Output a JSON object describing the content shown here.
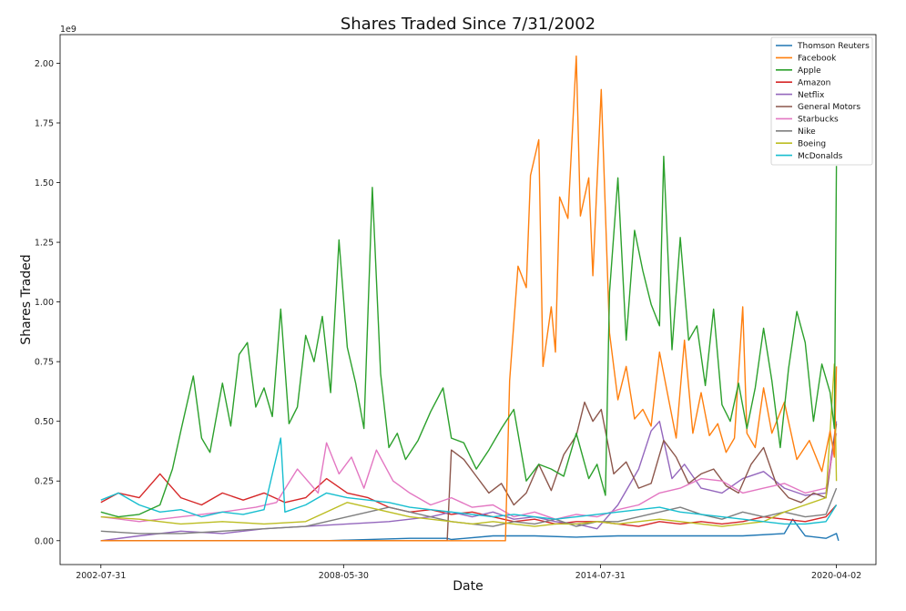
{
  "chart_data": {
    "type": "line",
    "title": "Shares Traded Since 7/31/2002",
    "xlabel": "Date",
    "ylabel": "Shares Traded",
    "y_multiplier_label": "1e9",
    "ylim": [
      -0.1,
      2.12
    ],
    "x_tick_labels": [
      "2002-07-31",
      "2008-05-30",
      "2014-07-31",
      "2020-04-02"
    ],
    "x_tick_years": [
      2002.58,
      2008.41,
      2014.58,
      2020.25
    ],
    "xlim": [
      2001.6,
      2021.2
    ],
    "y_ticks": [
      0.0,
      0.25,
      0.5,
      0.75,
      1.0,
      1.25,
      1.5,
      1.75,
      2.0
    ],
    "y_tick_labels": [
      "0.00",
      "0.25",
      "0.50",
      "0.75",
      "1.00",
      "1.25",
      "1.50",
      "1.75",
      "2.00"
    ],
    "grid": false,
    "legend_position": "top-right",
    "series": [
      {
        "name": "Thomson Reuters",
        "color": "#1f77b4",
        "x": [
          2002.58,
          2004,
          2006,
          2008,
          2010,
          2010.9,
          2011,
          2012,
          2013,
          2014,
          2015,
          2016,
          2017,
          2018,
          2019.0,
          2019.2,
          2019.5,
          2020,
          2020.25,
          2020.3
        ],
        "y": [
          0.0,
          0.0,
          0.0,
          0.0,
          0.01,
          0.01,
          0.005,
          0.02,
          0.02,
          0.015,
          0.02,
          0.02,
          0.02,
          0.02,
          0.03,
          0.09,
          0.02,
          0.01,
          0.03,
          0.0
        ]
      },
      {
        "name": "Facebook",
        "color": "#ff7f0e",
        "x": [
          2002.58,
          2012.3,
          2012.4,
          2012.6,
          2012.8,
          2012.9,
          2013.1,
          2013.2,
          2013.4,
          2013.5,
          2013.6,
          2013.8,
          2014.0,
          2014.1,
          2014.3,
          2014.4,
          2014.6,
          2014.8,
          2015.0,
          2015.2,
          2015.4,
          2015.6,
          2015.8,
          2016.0,
          2016.2,
          2016.4,
          2016.6,
          2016.8,
          2017.0,
          2017.2,
          2017.4,
          2017.6,
          2017.8,
          2018.0,
          2018.1,
          2018.3,
          2018.5,
          2018.7,
          2019.0,
          2019.3,
          2019.6,
          2019.9,
          2020.1,
          2020.2,
          2020.25
        ],
        "y": [
          0.0,
          0.0,
          0.67,
          1.15,
          1.06,
          1.53,
          1.68,
          0.73,
          0.98,
          0.79,
          1.44,
          1.35,
          2.03,
          1.36,
          1.52,
          1.11,
          1.89,
          0.87,
          0.59,
          0.73,
          0.51,
          0.55,
          0.48,
          0.79,
          0.61,
          0.43,
          0.84,
          0.45,
          0.62,
          0.44,
          0.49,
          0.37,
          0.43,
          0.98,
          0.45,
          0.39,
          0.64,
          0.45,
          0.58,
          0.34,
          0.42,
          0.29,
          0.46,
          0.35,
          0.73
        ]
      },
      {
        "name": "Apple",
        "color": "#2ca02c",
        "x": [
          2002.58,
          2003.0,
          2003.5,
          2004.0,
          2004.3,
          2004.5,
          2004.8,
          2005.0,
          2005.2,
          2005.5,
          2005.7,
          2005.9,
          2006.1,
          2006.3,
          2006.5,
          2006.7,
          2006.9,
          2007.1,
          2007.3,
          2007.5,
          2007.7,
          2007.9,
          2008.1,
          2008.3,
          2008.5,
          2008.7,
          2008.9,
          2009.1,
          2009.3,
          2009.5,
          2009.7,
          2009.9,
          2010.2,
          2010.5,
          2010.8,
          2011.0,
          2011.3,
          2011.6,
          2011.9,
          2012.2,
          2012.5,
          2012.8,
          2013.1,
          2013.4,
          2013.7,
          2014.0,
          2014.3,
          2014.5,
          2014.7,
          2014.8,
          2015.0,
          2015.2,
          2015.4,
          2015.6,
          2015.8,
          2016.0,
          2016.1,
          2016.3,
          2016.5,
          2016.7,
          2016.9,
          2017.1,
          2017.3,
          2017.5,
          2017.7,
          2017.9,
          2018.1,
          2018.3,
          2018.5,
          2018.7,
          2018.9,
          2019.1,
          2019.3,
          2019.5,
          2019.7,
          2019.9,
          2020.1,
          2020.2,
          2020.25
        ],
        "y": [
          0.12,
          0.1,
          0.11,
          0.15,
          0.3,
          0.46,
          0.69,
          0.43,
          0.37,
          0.66,
          0.48,
          0.78,
          0.83,
          0.56,
          0.64,
          0.52,
          0.97,
          0.49,
          0.56,
          0.86,
          0.75,
          0.94,
          0.62,
          1.26,
          0.81,
          0.66,
          0.47,
          1.48,
          0.7,
          0.39,
          0.45,
          0.34,
          0.42,
          0.54,
          0.64,
          0.43,
          0.41,
          0.3,
          0.38,
          0.47,
          0.55,
          0.25,
          0.32,
          0.3,
          0.27,
          0.45,
          0.26,
          0.32,
          0.19,
          1.04,
          1.52,
          0.84,
          1.3,
          1.13,
          0.99,
          0.9,
          1.61,
          0.8,
          1.27,
          0.84,
          0.9,
          0.65,
          0.97,
          0.57,
          0.5,
          0.66,
          0.47,
          0.64,
          0.89,
          0.67,
          0.39,
          0.72,
          0.96,
          0.83,
          0.5,
          0.74,
          0.62,
          0.47,
          1.57
        ]
      },
      {
        "name": "Amazon",
        "color": "#d62728",
        "x": [
          2002.58,
          2003.0,
          2003.5,
          2004.0,
          2004.5,
          2005.0,
          2005.5,
          2006.0,
          2006.5,
          2007.0,
          2007.5,
          2008.0,
          2008.5,
          2009.0,
          2009.5,
          2010.0,
          2010.5,
          2011.0,
          2011.5,
          2012.0,
          2012.5,
          2013.0,
          2013.5,
          2014.0,
          2014.5,
          2015.0,
          2015.5,
          2016.0,
          2016.5,
          2017.0,
          2017.5,
          2018.0,
          2018.5,
          2019.0,
          2019.5,
          2020.0,
          2020.25
        ],
        "y": [
          0.16,
          0.2,
          0.18,
          0.28,
          0.18,
          0.15,
          0.2,
          0.17,
          0.2,
          0.16,
          0.18,
          0.26,
          0.2,
          0.18,
          0.14,
          0.12,
          0.13,
          0.11,
          0.12,
          0.1,
          0.08,
          0.09,
          0.07,
          0.08,
          0.08,
          0.07,
          0.06,
          0.08,
          0.07,
          0.08,
          0.07,
          0.08,
          0.1,
          0.09,
          0.08,
          0.1,
          0.15
        ]
      },
      {
        "name": "Netflix",
        "color": "#9467bd",
        "x": [
          2002.58,
          2003.5,
          2004.5,
          2005.5,
          2006.5,
          2007.5,
          2008.5,
          2009.5,
          2010.5,
          2011.0,
          2011.5,
          2012.0,
          2012.5,
          2013.0,
          2013.5,
          2014.0,
          2014.5,
          2015.0,
          2015.5,
          2015.8,
          2016.0,
          2016.3,
          2016.6,
          2017.0,
          2017.5,
          2018.0,
          2018.5,
          2019.0,
          2019.5,
          2020.0,
          2020.25
        ],
        "y": [
          0.0,
          0.02,
          0.04,
          0.03,
          0.05,
          0.06,
          0.07,
          0.08,
          0.1,
          0.12,
          0.1,
          0.12,
          0.09,
          0.1,
          0.08,
          0.07,
          0.05,
          0.15,
          0.3,
          0.46,
          0.5,
          0.26,
          0.32,
          0.22,
          0.2,
          0.26,
          0.29,
          0.22,
          0.19,
          0.2,
          0.5
        ]
      },
      {
        "name": "General Motors",
        "color": "#8c564b",
        "x": [
          2002.58,
          2010.9,
          2011.0,
          2011.3,
          2011.6,
          2011.9,
          2012.2,
          2012.5,
          2012.8,
          2013.1,
          2013.4,
          2013.7,
          2014.0,
          2014.2,
          2014.4,
          2014.6,
          2014.9,
          2015.2,
          2015.5,
          2015.8,
          2016.1,
          2016.4,
          2016.7,
          2017.0,
          2017.3,
          2017.6,
          2017.9,
          2018.2,
          2018.5,
          2018.8,
          2019.1,
          2019.4,
          2019.7,
          2020.0,
          2020.25
        ],
        "y": [
          0.0,
          0.0,
          0.38,
          0.34,
          0.27,
          0.2,
          0.24,
          0.15,
          0.2,
          0.32,
          0.21,
          0.36,
          0.44,
          0.58,
          0.5,
          0.55,
          0.28,
          0.33,
          0.22,
          0.24,
          0.42,
          0.35,
          0.24,
          0.28,
          0.3,
          0.23,
          0.2,
          0.32,
          0.39,
          0.24,
          0.18,
          0.16,
          0.2,
          0.18,
          0.49
        ]
      },
      {
        "name": "Starbucks",
        "color": "#e377c2",
        "x": [
          2002.58,
          2003.5,
          2004.5,
          2005.5,
          2006.3,
          2006.8,
          2007.3,
          2007.8,
          2008.0,
          2008.3,
          2008.6,
          2008.9,
          2009.2,
          2009.6,
          2010.0,
          2010.5,
          2011.0,
          2011.5,
          2012.0,
          2012.5,
          2013.0,
          2013.5,
          2014.0,
          2014.5,
          2015.0,
          2015.5,
          2016.0,
          2016.5,
          2017.0,
          2017.5,
          2018.0,
          2018.5,
          2019.0,
          2019.5,
          2020.0,
          2020.25
        ],
        "y": [
          0.1,
          0.08,
          0.1,
          0.12,
          0.14,
          0.16,
          0.3,
          0.2,
          0.41,
          0.28,
          0.35,
          0.22,
          0.38,
          0.25,
          0.2,
          0.15,
          0.18,
          0.14,
          0.15,
          0.1,
          0.12,
          0.09,
          0.11,
          0.1,
          0.13,
          0.15,
          0.2,
          0.22,
          0.26,
          0.25,
          0.2,
          0.22,
          0.24,
          0.2,
          0.22,
          0.45
        ]
      },
      {
        "name": "Nike",
        "color": "#7f7f7f",
        "x": [
          2002.58,
          2003.5,
          2004.5,
          2005.5,
          2006.5,
          2007.5,
          2008.0,
          2008.5,
          2009.0,
          2009.5,
          2010.0,
          2010.5,
          2011.0,
          2011.5,
          2012.0,
          2012.5,
          2013.0,
          2013.5,
          2014.0,
          2014.5,
          2015.0,
          2015.5,
          2016.0,
          2016.5,
          2017.0,
          2017.5,
          2018.0,
          2018.5,
          2019.0,
          2019.5,
          2020.0,
          2020.25
        ],
        "y": [
          0.04,
          0.03,
          0.03,
          0.04,
          0.05,
          0.06,
          0.08,
          0.1,
          0.12,
          0.14,
          0.12,
          0.1,
          0.08,
          0.07,
          0.06,
          0.08,
          0.07,
          0.09,
          0.06,
          0.08,
          0.08,
          0.1,
          0.12,
          0.14,
          0.11,
          0.09,
          0.12,
          0.1,
          0.12,
          0.1,
          0.11,
          0.22
        ]
      },
      {
        "name": "Boeing",
        "color": "#bcbd22",
        "x": [
          2002.58,
          2003.5,
          2004.5,
          2005.5,
          2006.5,
          2007.5,
          2008.0,
          2008.5,
          2009.0,
          2009.5,
          2010.0,
          2010.5,
          2011.0,
          2011.5,
          2012.0,
          2012.5,
          2013.0,
          2013.5,
          2014.0,
          2014.5,
          2015.0,
          2015.5,
          2016.0,
          2016.5,
          2017.0,
          2017.5,
          2018.0,
          2018.5,
          2019.0,
          2019.5,
          2020.0,
          2020.2,
          2020.25
        ],
        "y": [
          0.1,
          0.09,
          0.07,
          0.08,
          0.07,
          0.08,
          0.12,
          0.16,
          0.14,
          0.12,
          0.1,
          0.09,
          0.08,
          0.07,
          0.08,
          0.07,
          0.06,
          0.07,
          0.07,
          0.08,
          0.07,
          0.08,
          0.09,
          0.08,
          0.07,
          0.06,
          0.07,
          0.08,
          0.12,
          0.15,
          0.18,
          0.74,
          0.25
        ]
      },
      {
        "name": "McDonalds",
        "color": "#17becf",
        "x": [
          2002.58,
          2003.0,
          2003.5,
          2004.0,
          2004.5,
          2005.0,
          2005.5,
          2006.0,
          2006.5,
          2006.9,
          2007.0,
          2007.5,
          2008.0,
          2008.5,
          2009.0,
          2009.5,
          2010.0,
          2010.5,
          2011.0,
          2011.5,
          2012.0,
          2012.5,
          2013.0,
          2013.5,
          2014.0,
          2014.5,
          2015.0,
          2015.5,
          2016.0,
          2016.5,
          2017.0,
          2017.5,
          2018.0,
          2018.5,
          2019.0,
          2019.5,
          2020.0,
          2020.25
        ],
        "y": [
          0.17,
          0.2,
          0.15,
          0.12,
          0.13,
          0.1,
          0.12,
          0.11,
          0.13,
          0.43,
          0.12,
          0.15,
          0.2,
          0.18,
          0.17,
          0.16,
          0.14,
          0.13,
          0.12,
          0.11,
          0.1,
          0.11,
          0.1,
          0.09,
          0.1,
          0.11,
          0.12,
          0.13,
          0.14,
          0.12,
          0.11,
          0.1,
          0.09,
          0.08,
          0.07,
          0.07,
          0.08,
          0.15
        ]
      }
    ]
  }
}
